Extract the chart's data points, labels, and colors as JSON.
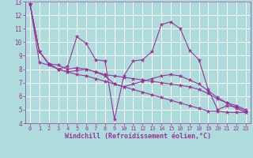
{
  "title": "",
  "xlabel": "Windchill (Refroidissement éolien,°C)",
  "ylabel": "",
  "xlim": [
    -0.5,
    23.5
  ],
  "ylim": [
    4,
    13
  ],
  "yticks": [
    4,
    5,
    6,
    7,
    8,
    9,
    10,
    11,
    12,
    13
  ],
  "xticks": [
    0,
    1,
    2,
    3,
    4,
    5,
    6,
    7,
    8,
    9,
    10,
    11,
    12,
    13,
    14,
    15,
    16,
    17,
    18,
    19,
    20,
    21,
    22,
    23
  ],
  "bg_color": "#aedcdc",
  "line_color": "#993399",
  "grid_color": "#ffffff",
  "series": [
    [
      12.8,
      9.3,
      8.4,
      8.0,
      8.2,
      10.4,
      9.9,
      8.7,
      8.6,
      4.3,
      7.5,
      8.6,
      8.7,
      9.3,
      11.3,
      11.5,
      11.0,
      9.4,
      8.7,
      6.5,
      5.0,
      5.3,
      5.2,
      4.9
    ],
    [
      12.8,
      9.3,
      8.4,
      8.3,
      8.0,
      8.1,
      8.0,
      7.8,
      7.6,
      7.5,
      7.4,
      7.3,
      7.2,
      7.1,
      7.0,
      6.9,
      6.8,
      6.7,
      6.5,
      6.2,
      5.8,
      5.5,
      5.3,
      5.0
    ],
    [
      12.8,
      9.3,
      8.4,
      8.0,
      7.8,
      7.9,
      8.0,
      7.8,
      7.5,
      6.9,
      6.7,
      6.9,
      7.1,
      7.3,
      7.5,
      7.6,
      7.5,
      7.2,
      6.9,
      6.4,
      5.9,
      5.5,
      5.1,
      4.8
    ],
    [
      12.8,
      8.5,
      8.3,
      8.0,
      7.8,
      7.6,
      7.5,
      7.3,
      7.1,
      6.9,
      6.7,
      6.5,
      6.3,
      6.1,
      5.9,
      5.7,
      5.5,
      5.3,
      5.1,
      4.9,
      4.9,
      4.8,
      4.8,
      4.8
    ]
  ]
}
